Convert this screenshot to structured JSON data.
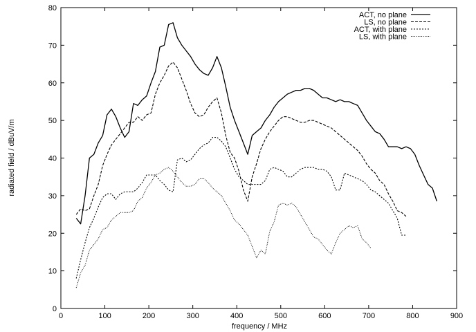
{
  "chart_data": {
    "type": "line",
    "title": "",
    "xlabel": "frequency / MHz",
    "ylabel": "radiated field / dBuV/m",
    "xlim": [
      0,
      900
    ],
    "ylim": [
      0,
      80
    ],
    "xticks": [
      0,
      100,
      200,
      300,
      400,
      500,
      600,
      700,
      800,
      900
    ],
    "yticks": [
      0,
      10,
      20,
      30,
      40,
      50,
      60,
      70,
      80
    ],
    "grid": false,
    "legend_position": "top-right",
    "series": [
      {
        "name": "ACT, no plane",
        "style": "solid",
        "x": [
          35,
          45,
          55,
          65,
          75,
          85,
          95,
          105,
          115,
          125,
          135,
          145,
          155,
          165,
          175,
          185,
          195,
          205,
          215,
          225,
          235,
          245,
          255,
          265,
          275,
          285,
          295,
          305,
          315,
          325,
          335,
          345,
          355,
          365,
          375,
          385,
          395,
          405,
          415,
          425,
          435,
          445,
          455,
          465,
          475,
          485,
          495,
          505,
          515,
          525,
          535,
          545,
          555,
          565,
          575,
          585,
          595,
          605,
          615,
          625,
          635,
          645,
          655,
          665,
          675,
          685,
          695,
          705,
          715,
          725,
          735,
          745,
          755,
          765,
          775,
          785,
          795,
          805,
          815,
          825,
          835,
          845,
          855
        ],
        "y": [
          24,
          22.5,
          30,
          40,
          41,
          44,
          46,
          51.5,
          53,
          51,
          48,
          45.5,
          47,
          54.5,
          54,
          55.5,
          56.5,
          60,
          63,
          69.5,
          70,
          75.5,
          76,
          72,
          70,
          68.5,
          67,
          65,
          63.5,
          62.5,
          62,
          64,
          67,
          64,
          59,
          53.5,
          50,
          47,
          44,
          41,
          46,
          47,
          48,
          50,
          51.5,
          53.5,
          55,
          56,
          57,
          57.5,
          58,
          58,
          58.5,
          58.5,
          58,
          57,
          56,
          56,
          55.5,
          55,
          55.5,
          55,
          55,
          54.5,
          54,
          52,
          50,
          48.5,
          47,
          46.5,
          45,
          43,
          43,
          43,
          42.5,
          43,
          42.5,
          41,
          38,
          35.5,
          33,
          32,
          28.5
        ]
      },
      {
        "name": "LS, no plane",
        "style": "dashed",
        "x": [
          35,
          45,
          55,
          65,
          75,
          85,
          95,
          105,
          115,
          125,
          135,
          145,
          155,
          165,
          175,
          185,
          195,
          205,
          215,
          225,
          235,
          245,
          255,
          265,
          275,
          285,
          295,
          305,
          315,
          325,
          335,
          345,
          355,
          365,
          375,
          385,
          395,
          405,
          415,
          425,
          435,
          445,
          455,
          465,
          475,
          485,
          495,
          505,
          515,
          525,
          535,
          545,
          555,
          565,
          575,
          585,
          595,
          605,
          615,
          625,
          635,
          645,
          655,
          665,
          675,
          685,
          695,
          705,
          715,
          725,
          735,
          745,
          755,
          765,
          775,
          785
        ],
        "y": [
          25,
          26.5,
          26,
          26.5,
          30,
          33,
          38,
          41,
          43.5,
          45,
          46.5,
          48,
          49.5,
          49.5,
          51,
          50,
          51.5,
          52,
          57,
          60,
          62,
          64.5,
          65.5,
          64,
          61,
          58,
          54.5,
          52,
          51,
          51.5,
          53.5,
          55,
          56,
          52,
          46,
          41.5,
          40,
          36.5,
          31.5,
          28.5,
          35,
          38.5,
          42.5,
          45,
          47,
          48.5,
          50,
          51,
          51,
          50.5,
          50,
          49.5,
          49.5,
          50,
          50,
          49.5,
          49,
          48.5,
          48,
          47,
          46,
          45,
          44,
          43,
          42,
          40.5,
          38.5,
          37,
          36,
          34,
          33,
          30.5,
          28.5,
          26,
          25.5,
          24.5
        ]
      },
      {
        "name": "ACT, with plane",
        "style": "dotted",
        "x": [
          35,
          45,
          55,
          65,
          75,
          85,
          95,
          105,
          115,
          125,
          135,
          145,
          155,
          165,
          175,
          185,
          195,
          205,
          215,
          225,
          235,
          245,
          255,
          265,
          275,
          285,
          295,
          305,
          315,
          325,
          335,
          345,
          355,
          365,
          375,
          385,
          395,
          405,
          415,
          425,
          435,
          445,
          455,
          465,
          475,
          485,
          495,
          505,
          515,
          525,
          535,
          545,
          555,
          565,
          575,
          585,
          595,
          605,
          615,
          625,
          635,
          645,
          655,
          665,
          675,
          685,
          695,
          705,
          715,
          725,
          735,
          745,
          755,
          765,
          775,
          785
        ],
        "y": [
          8,
          13,
          17.5,
          21.5,
          24,
          27,
          29.5,
          30.5,
          30.5,
          29,
          30.5,
          31,
          31,
          31,
          32,
          33.5,
          35.5,
          35.5,
          35.5,
          34,
          33,
          31.5,
          31,
          39.5,
          40,
          39,
          39.5,
          41,
          42.5,
          43.5,
          44,
          45.5,
          45.5,
          44.5,
          43,
          40,
          37,
          35,
          34,
          33,
          33,
          33,
          33,
          34,
          37,
          37.5,
          37,
          36.5,
          35,
          35,
          36,
          37,
          37.5,
          37.5,
          37.5,
          37,
          37,
          36.5,
          35,
          31.5,
          31.5,
          36,
          35.5,
          35,
          34.5,
          34,
          33,
          31.5,
          31,
          30,
          29,
          28,
          26,
          24,
          19.5,
          19.5
        ]
      },
      {
        "name": "LS, with plane",
        "style": "dotted-fine",
        "x": [
          35,
          45,
          55,
          65,
          75,
          85,
          95,
          105,
          115,
          125,
          135,
          145,
          155,
          165,
          175,
          185,
          195,
          205,
          215,
          225,
          235,
          245,
          255,
          265,
          275,
          285,
          295,
          305,
          315,
          325,
          335,
          345,
          355,
          365,
          375,
          385,
          395,
          405,
          415,
          425,
          435,
          445,
          455,
          465,
          475,
          485,
          495,
          505,
          515,
          525,
          535,
          545,
          555,
          565,
          575,
          585,
          595,
          605,
          615,
          625,
          635,
          645,
          655,
          665,
          675,
          685,
          695,
          705
        ],
        "y": [
          5.5,
          9.5,
          11.5,
          15.5,
          17,
          18.5,
          21,
          21.5,
          23.5,
          24.5,
          25.5,
          25.5,
          25.5,
          26,
          28.5,
          29.5,
          32,
          33.5,
          35.5,
          36,
          37,
          37.5,
          36.5,
          35,
          33.5,
          32.5,
          32.5,
          33,
          34.5,
          34.5,
          33.5,
          32,
          31,
          30,
          28,
          26,
          23.5,
          22.5,
          21,
          19.5,
          16.5,
          13.5,
          15.5,
          14.5,
          20.5,
          23,
          27.5,
          28,
          27.5,
          28,
          27,
          25,
          23,
          21,
          19,
          18.5,
          17,
          15.5,
          14.5,
          17.5,
          20,
          21,
          22,
          21.5,
          22,
          18.5,
          17.5,
          16
        ]
      }
    ]
  }
}
